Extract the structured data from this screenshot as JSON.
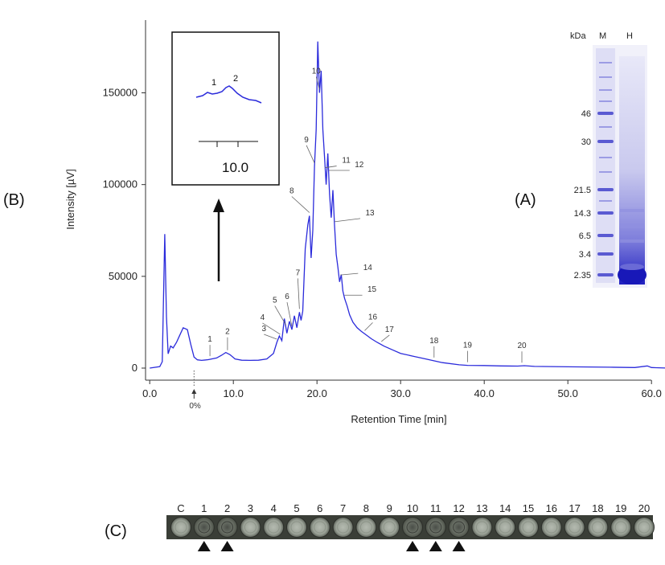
{
  "panels": {
    "b": "(B)",
    "a": "(A)",
    "c": "(C)"
  },
  "chart_data": {
    "type": "line",
    "xlabel": "Retention Time [min]",
    "ylabel": "Intensity [µV]",
    "xlim": [
      -0.5,
      62
    ],
    "ylim": [
      -8000,
      188000
    ],
    "xticks": [
      0,
      10,
      20,
      30,
      40,
      50,
      60
    ],
    "xtick_labels": [
      "0.0",
      "10.0",
      "20.0",
      "30.0",
      "40.0",
      "50.0",
      "60.0"
    ],
    "yticks": [
      0,
      50000,
      100000,
      150000
    ],
    "ytick_labels": [
      "0",
      "50000",
      "100000",
      "150000"
    ],
    "color": "#2b2bdb",
    "series": [
      {
        "x": [
          0,
          1.2,
          1.5,
          1.8,
          2.0,
          2.2,
          2.5,
          2.8,
          3.2,
          3.5,
          4.0,
          4.5,
          4.9,
          5.3,
          5.7,
          6.2,
          7.0,
          8.0,
          8.6,
          9.1,
          9.6,
          10.2,
          11.0,
          12.0,
          13.0,
          14.0,
          14.8,
          15.2,
          15.5,
          15.8,
          16.1,
          16.4,
          16.7,
          17.0,
          17.3,
          17.6,
          17.9,
          18.1,
          18.3,
          18.6,
          18.9,
          19.1,
          19.3,
          19.5,
          19.7,
          19.9,
          20.1,
          20.3,
          20.5,
          20.7,
          20.9,
          21.1,
          21.3,
          21.5,
          21.7,
          21.9,
          22.1,
          22.3,
          22.5,
          22.7,
          22.9,
          23.1,
          23.3,
          23.6,
          23.9,
          24.3,
          24.8,
          25.3,
          25.9,
          26.5,
          27.2,
          28.0,
          29.0,
          30.0,
          31.5,
          33.0,
          35.0,
          37.0,
          38.0,
          40.0,
          42.0,
          44.0,
          44.8,
          46.0,
          50.0,
          55.0,
          58.0,
          59.5,
          60.0,
          60.5,
          62.0
        ],
        "y": [
          0,
          800,
          3500,
          73000,
          28000,
          7800,
          12000,
          11000,
          14000,
          17000,
          22000,
          21000,
          13000,
          6000,
          4500,
          4200,
          4600,
          5500,
          7000,
          8500,
          7300,
          5000,
          4300,
          4200,
          4300,
          5000,
          8000,
          14000,
          17500,
          15000,
          27000,
          19000,
          25500,
          21000,
          28500,
          22000,
          30500,
          26000,
          31000,
          65000,
          78000,
          83000,
          60000,
          75000,
          110000,
          130000,
          178000,
          150000,
          162000,
          130000,
          115000,
          100000,
          117000,
          95000,
          82000,
          97000,
          78000,
          62000,
          55000,
          47000,
          51000,
          42000,
          38000,
          34000,
          29000,
          25000,
          22000,
          20000,
          18000,
          16000,
          14000,
          12000,
          10000,
          8000,
          6500,
          5000,
          3000,
          1800,
          1500,
          1400,
          1200,
          1100,
          1300,
          900,
          700,
          500,
          300,
          1200,
          300,
          200,
          0
        ]
      }
    ],
    "peak_labels": [
      "1",
      "2",
      "3",
      "4",
      "5",
      "6",
      "7",
      "8",
      "9",
      "10",
      "11",
      "12",
      "13",
      "14",
      "15",
      "16",
      "17",
      "18",
      "19",
      "20"
    ],
    "peak_times": [
      7.2,
      9.3,
      15.2,
      15.6,
      16.3,
      17.0,
      17.9,
      19.1,
      19.7,
      20.3,
      21.0,
      21.4,
      22.1,
      22.8,
      23.3,
      25.7,
      27.7,
      34.0,
      38.0,
      44.5
    ],
    "zero_marker": "0%",
    "zero_marker_time": 5.3
  },
  "inset": {
    "peak_labels": [
      "1",
      "2"
    ],
    "tick_label": "10.0"
  },
  "gel": {
    "unit": "kDa",
    "lane_labels": [
      "M",
      "H"
    ],
    "markers": [
      "46",
      "30",
      "21.5",
      "14.3",
      "6.5",
      "3.4",
      "2.35"
    ]
  },
  "strip": {
    "wells": [
      "C",
      "1",
      "2",
      "3",
      "4",
      "5",
      "6",
      "7",
      "8",
      "9",
      "10",
      "11",
      "12",
      "13",
      "14",
      "15",
      "16",
      "17",
      "18",
      "19",
      "20"
    ],
    "active": [
      "1",
      "2",
      "10",
      "11",
      "12"
    ]
  }
}
